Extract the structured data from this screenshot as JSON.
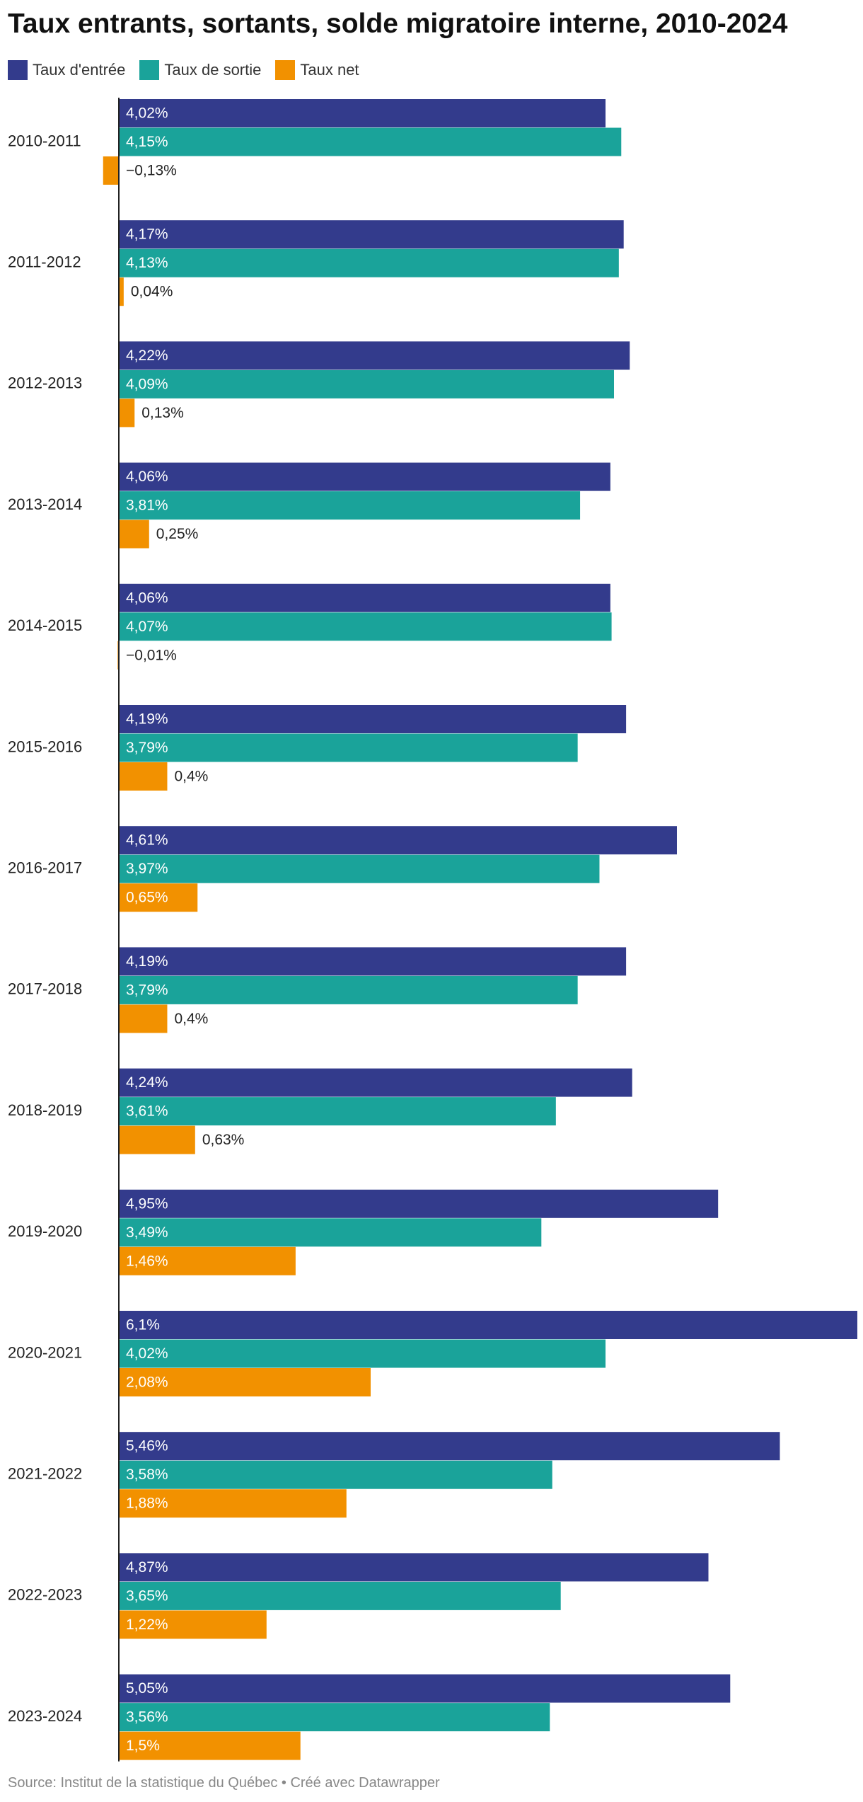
{
  "chart_data": {
    "type": "bar",
    "orientation": "horizontal",
    "title": "Taux entrants, sortants, solde migratoire interne, 2010-2024",
    "categories": [
      "2010-2011",
      "2011-2012",
      "2012-2013",
      "2013-2014",
      "2014-2015",
      "2015-2016",
      "2016-2017",
      "2017-2018",
      "2018-2019",
      "2019-2020",
      "2020-2021",
      "2021-2022",
      "2022-2023",
      "2023-2024"
    ],
    "series": [
      {
        "name": "Taux d'entrée",
        "color": "#333b8c",
        "values": [
          4.02,
          4.17,
          4.22,
          4.06,
          4.06,
          4.19,
          4.61,
          4.19,
          4.24,
          4.95,
          6.1,
          5.46,
          4.87,
          5.05
        ],
        "labels": [
          "4,02%",
          "4,17%",
          "4,22%",
          "4,06%",
          "4,06%",
          "4,19%",
          "4,61%",
          "4,19%",
          "4,24%",
          "4,95%",
          "6,1%",
          "5,46%",
          "4,87%",
          "5,05%"
        ]
      },
      {
        "name": "Taux de sortie",
        "color": "#1aa39a",
        "values": [
          4.15,
          4.13,
          4.09,
          3.81,
          4.07,
          3.79,
          3.97,
          3.79,
          3.61,
          3.49,
          4.02,
          3.58,
          3.65,
          3.56
        ],
        "labels": [
          "4,15%",
          "4,13%",
          "4,09%",
          "3,81%",
          "4,07%",
          "3,79%",
          "3,97%",
          "3,79%",
          "3,61%",
          "3,49%",
          "4,02%",
          "3,58%",
          "3,65%",
          "3,56%"
        ]
      },
      {
        "name": "Taux net",
        "color": "#f29100",
        "values": [
          -0.13,
          0.04,
          0.13,
          0.25,
          -0.01,
          0.4,
          0.65,
          0.4,
          0.63,
          1.46,
          2.08,
          1.88,
          1.22,
          1.5
        ],
        "labels": [
          "−0,13%",
          "0,04%",
          "0,13%",
          "0,25%",
          "−0,01%",
          "0,4%",
          "0,65%",
          "0,4%",
          "0,63%",
          "1,46%",
          "2,08%",
          "1,88%",
          "1,22%",
          "1,5%"
        ]
      }
    ],
    "xlim": [
      -0.13,
      6.1
    ],
    "grid": false,
    "legend": "top-left",
    "source": "Source: Institut de la statistique du Québec • Créé avec Datawrapper"
  }
}
